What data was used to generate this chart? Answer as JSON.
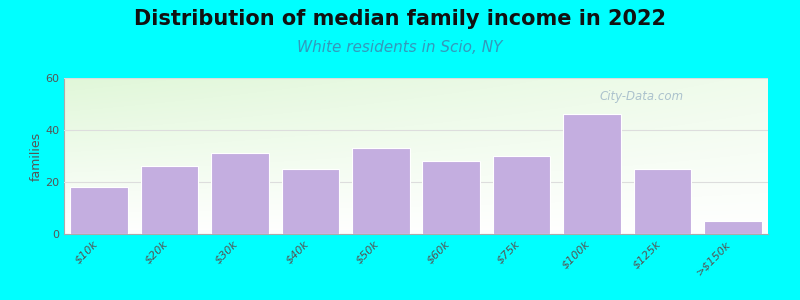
{
  "title": "Distribution of median family income in 2022",
  "subtitle": "White residents in Scio, NY",
  "categories": [
    "$10k",
    "$20k",
    "$30k",
    "$40k",
    "$50k",
    "$60k",
    "$75k",
    "$100k",
    "$125k",
    ">$150k"
  ],
  "values": [
    18,
    26,
    31,
    25,
    33,
    28,
    30,
    46,
    25,
    5
  ],
  "bar_color": "#c4aee0",
  "background_color": "#00ffff",
  "ylabel": "families",
  "ylim": [
    0,
    60
  ],
  "yticks": [
    0,
    20,
    40,
    60
  ],
  "title_fontsize": 15,
  "subtitle_fontsize": 11,
  "subtitle_color": "#3399bb",
  "watermark": "City-Data.com",
  "watermark_color": "#a0b8c8",
  "grid_color": "#dddddd",
  "tick_fontsize": 8
}
